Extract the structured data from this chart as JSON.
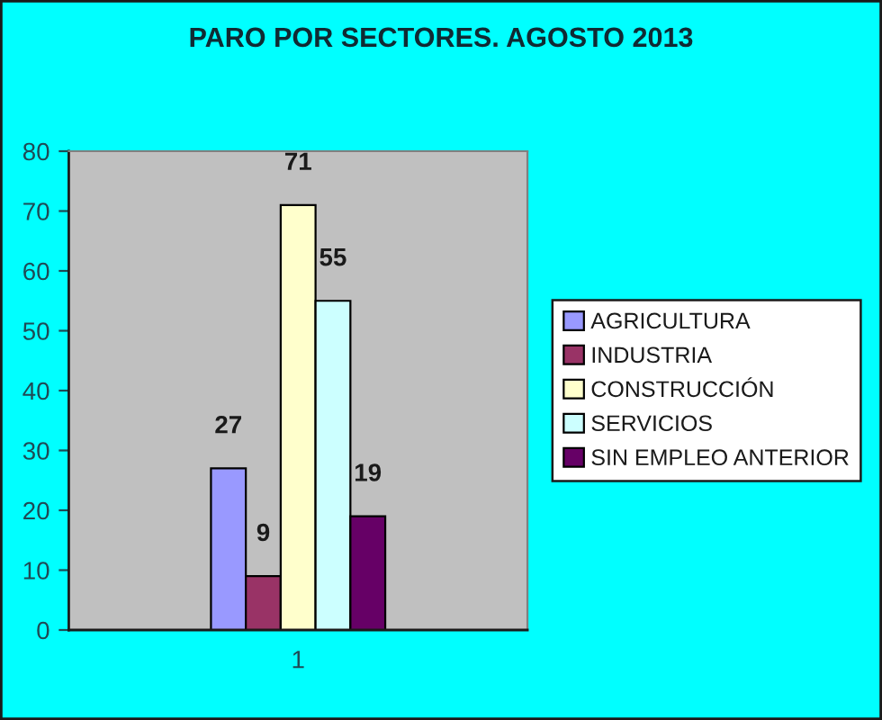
{
  "chart_data": {
    "type": "bar",
    "title": "PARO POR SECTORES. AGOSTO 2013",
    "categories": [
      "1"
    ],
    "series": [
      {
        "name": "AGRICULTURA",
        "color": "#9999ff",
        "values": [
          27
        ]
      },
      {
        "name": "INDUSTRIA",
        "color": "#993366",
        "values": [
          9
        ]
      },
      {
        "name": "CONSTRUCCIÓN",
        "color": "#ffffcc",
        "values": [
          71
        ]
      },
      {
        "name": "SERVICIOS",
        "color": "#ccffff",
        "values": [
          55
        ]
      },
      {
        "name": "SIN EMPLEO ANTERIOR",
        "color": "#660066",
        "values": [
          19
        ]
      }
    ],
    "ylim": [
      0,
      80
    ],
    "yticks": [
      0,
      10,
      20,
      30,
      40,
      50,
      60,
      70,
      80
    ],
    "legend": "right",
    "data_labels": true
  }
}
